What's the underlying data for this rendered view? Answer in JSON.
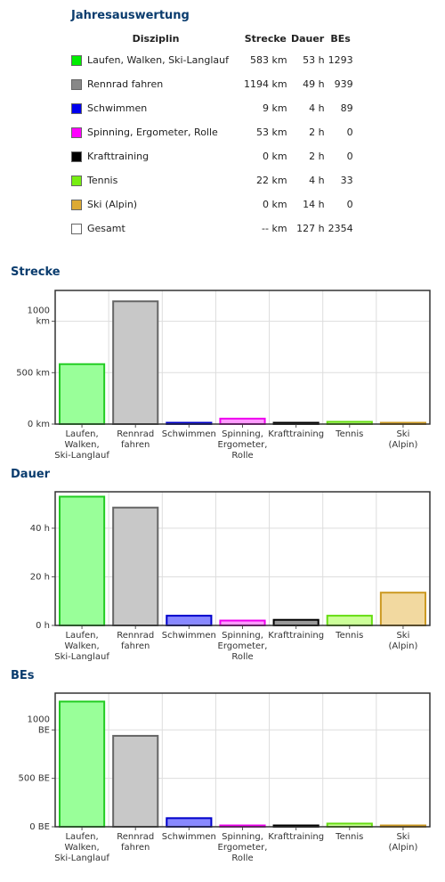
{
  "summary": {
    "title": "Jahresauswertung",
    "headers": {
      "discipline": "Disziplin",
      "distance": "Strecke",
      "duration": "Dauer",
      "be": "BEs"
    },
    "rows": [
      {
        "label": "Laufen, Walken, Ski-Langlauf",
        "distance": "583 km",
        "duration": "53 h",
        "be": "1293",
        "color": "#00ee00"
      },
      {
        "label": "Rennrad fahren",
        "distance": "1194 km",
        "duration": "49 h",
        "be": "939",
        "color": "#888888"
      },
      {
        "label": "Schwimmen",
        "distance": "9 km",
        "duration": "4 h",
        "be": "89",
        "color": "#0000ee"
      },
      {
        "label": "Spinning, Ergometer, Rolle",
        "distance": "53 km",
        "duration": "2 h",
        "be": "0",
        "color": "#ff00ff"
      },
      {
        "label": "Krafttraining",
        "distance": "0 km",
        "duration": "2 h",
        "be": "0",
        "color": "#000000"
      },
      {
        "label": "Tennis",
        "distance": "22 km",
        "duration": "4 h",
        "be": "33",
        "color": "#77ee11"
      },
      {
        "label": "Ski (Alpin)",
        "distance": "0 km",
        "duration": "14 h",
        "be": "0",
        "color": "#ddaa33"
      },
      {
        "label": "Gesamt",
        "distance": "-- km",
        "duration": "127 h",
        "be": "2354",
        "color": "#ffffff"
      }
    ]
  },
  "chart_data": [
    {
      "type": "bar",
      "title": "Strecke",
      "categories": [
        [
          "Laufen,",
          "Walken,",
          "Ski-Langlauf"
        ],
        [
          "Rennrad",
          "fahren"
        ],
        [
          "Schwimmen"
        ],
        [
          "Spinning,",
          "Ergometer,",
          "Rolle"
        ],
        [
          "Krafttraining"
        ],
        [
          "Tennis"
        ],
        [
          "Ski",
          "(Alpin)"
        ]
      ],
      "values": [
        583,
        1194,
        9,
        53,
        0,
        22,
        0
      ],
      "ylim": [
        0,
        1300
      ],
      "yticks": [
        {
          "value": 0,
          "label": [
            "0 km"
          ]
        },
        {
          "value": 500,
          "label": [
            "500 km"
          ]
        },
        {
          "value": 1000,
          "label": [
            "1000",
            "km"
          ]
        }
      ],
      "grid": true
    },
    {
      "type": "bar",
      "title": "Dauer",
      "categories": [
        [
          "Laufen,",
          "Walken,",
          "Ski-Langlauf"
        ],
        [
          "Rennrad",
          "fahren"
        ],
        [
          "Schwimmen"
        ],
        [
          "Spinning,",
          "Ergometer,",
          "Rolle"
        ],
        [
          "Krafttraining"
        ],
        [
          "Tennis"
        ],
        [
          "Ski",
          "(Alpin)"
        ]
      ],
      "values": [
        53,
        48.5,
        4,
        2,
        2.3,
        4,
        13.5
      ],
      "ylim": [
        0,
        55
      ],
      "yticks": [
        {
          "value": 0,
          "label": [
            "0 h"
          ]
        },
        {
          "value": 20,
          "label": [
            "20 h"
          ]
        },
        {
          "value": 40,
          "label": [
            "40 h"
          ]
        }
      ],
      "grid": true
    },
    {
      "type": "bar",
      "title": "BEs",
      "categories": [
        [
          "Laufen,",
          "Walken,",
          "Ski-Langlauf"
        ],
        [
          "Rennrad",
          "fahren"
        ],
        [
          "Schwimmen"
        ],
        [
          "Spinning,",
          "Ergometer,",
          "Rolle"
        ],
        [
          "Krafttraining"
        ],
        [
          "Tennis"
        ],
        [
          "Ski",
          "(Alpin)"
        ]
      ],
      "values": [
        1293,
        939,
        89,
        0,
        0,
        33,
        0
      ],
      "ylim": [
        0,
        1380
      ],
      "yticks": [
        {
          "value": 0,
          "label": [
            "0 BE"
          ]
        },
        {
          "value": 500,
          "label": [
            "500 BE"
          ]
        },
        {
          "value": 1000,
          "label": [
            "1000",
            "BE"
          ]
        }
      ],
      "grid": true
    }
  ],
  "bar_colors": [
    {
      "fill": "#99ff99",
      "stroke": "#22cc22"
    },
    {
      "fill": "#c8c8c8",
      "stroke": "#666666"
    },
    {
      "fill": "#8888ff",
      "stroke": "#0000cc"
    },
    {
      "fill": "#ff99ff",
      "stroke": "#ee00ee"
    },
    {
      "fill": "#999999",
      "stroke": "#000000"
    },
    {
      "fill": "#ccff99",
      "stroke": "#66dd11"
    },
    {
      "fill": "#f2d9a0",
      "stroke": "#cc9922"
    }
  ]
}
